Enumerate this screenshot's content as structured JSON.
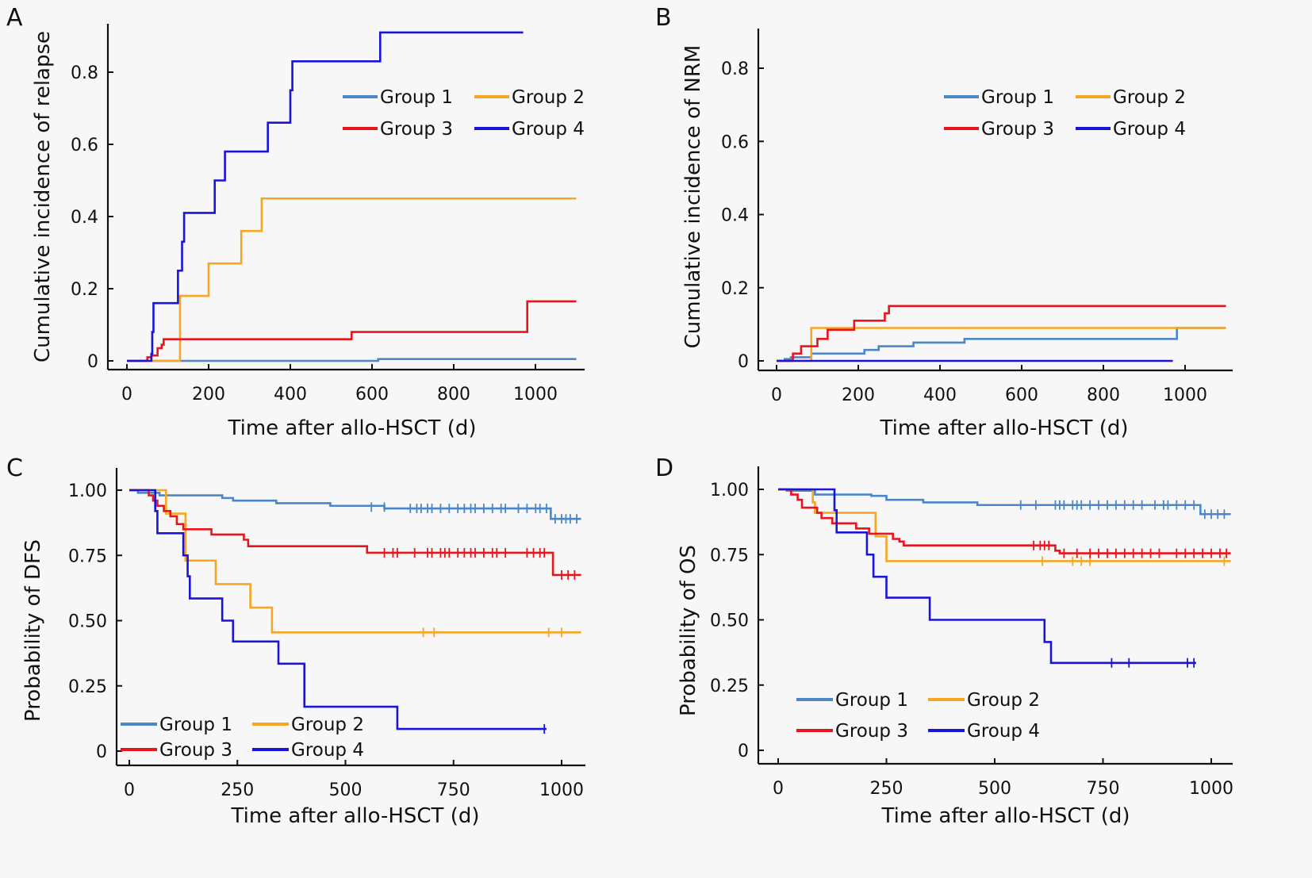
{
  "figure": {
    "colors": {
      "Group 1": "#4a86c8",
      "Group 2": "#f5a623",
      "Group 3": "#e8141e",
      "Group 4": "#1a14d6"
    }
  },
  "chart_data": [
    {
      "panel": "A",
      "type": "line",
      "step": true,
      "title": "",
      "xlabel": "Time after allo-HSCT (d)",
      "ylabel": "Cumulative incidence of relapse",
      "xlim": [
        -45,
        1120
      ],
      "ylim": [
        -0.025,
        0.92
      ],
      "xticks": [
        0,
        200,
        400,
        600,
        800,
        1000
      ],
      "xtick_labels": [
        "0",
        "200",
        "400",
        "600",
        "800",
        "1000"
      ],
      "yticks": [
        0,
        0.2,
        0.4,
        0.6,
        0.8
      ],
      "ytick_labels": [
        "0",
        "0.2",
        "0.4",
        "0.6",
        "0.8"
      ],
      "grid": false,
      "legend": {
        "placement": "top-right",
        "columns": 2,
        "entries": [
          "Group 1",
          "Group 2",
          "Group 3",
          "Group 4"
        ]
      },
      "series": [
        {
          "name": "Group 1",
          "x": [
            0,
            610,
            615,
            1100
          ],
          "y": [
            0,
            0,
            0.005,
            0.005
          ]
        },
        {
          "name": "Group 2",
          "x": [
            0,
            130,
            200,
            280,
            330,
            1100
          ],
          "y": [
            0,
            0.18,
            0.27,
            0.36,
            0.45,
            0.45
          ]
        },
        {
          "name": "Group 3",
          "x": [
            0,
            50,
            60,
            75,
            85,
            90,
            550,
            980,
            1100
          ],
          "y": [
            0,
            0.01,
            0.015,
            0.035,
            0.045,
            0.06,
            0.08,
            0.165,
            0.165
          ]
        },
        {
          "name": "Group 4",
          "x": [
            0,
            60,
            62,
            65,
            125,
            135,
            140,
            215,
            240,
            345,
            400,
            405,
            620,
            970
          ],
          "y": [
            0,
            0.02,
            0.08,
            0.16,
            0.25,
            0.33,
            0.41,
            0.5,
            0.58,
            0.66,
            0.75,
            0.83,
            0.91,
            0.91
          ]
        }
      ],
      "censor_marks": []
    },
    {
      "panel": "B",
      "type": "line",
      "step": true,
      "title": "",
      "xlabel": "Time after allo-HSCT (d)",
      "ylabel": "Cumulative incidence of NRM",
      "xlim": [
        -45,
        1120
      ],
      "ylim": [
        -0.025,
        0.92
      ],
      "xticks": [
        0,
        200,
        400,
        600,
        800,
        1000
      ],
      "xtick_labels": [
        "0",
        "200",
        "400",
        "600",
        "800",
        "1000"
      ],
      "yticks": [
        0,
        0.2,
        0.4,
        0.6,
        0.8
      ],
      "ytick_labels": [
        "0",
        "0.2",
        "0.4",
        "0.6",
        "0.8"
      ],
      "grid": false,
      "legend": {
        "placement": "top-right",
        "columns": 2,
        "entries": [
          "Group 1",
          "Group 2",
          "Group 3",
          "Group 4"
        ]
      },
      "series": [
        {
          "name": "Group 1",
          "x": [
            0,
            20,
            35,
            85,
            215,
            250,
            335,
            460,
            980,
            1100
          ],
          "y": [
            0,
            0.005,
            0.01,
            0.02,
            0.03,
            0.04,
            0.05,
            0.06,
            0.09,
            0.09
          ]
        },
        {
          "name": "Group 2",
          "x": [
            0,
            85,
            1100
          ],
          "y": [
            0,
            0.09,
            0.09
          ]
        },
        {
          "name": "Group 3",
          "x": [
            0,
            40,
            60,
            100,
            125,
            190,
            265,
            275,
            1100
          ],
          "y": [
            0,
            0.02,
            0.04,
            0.06,
            0.085,
            0.11,
            0.13,
            0.15,
            0.15
          ]
        },
        {
          "name": "Group 4",
          "x": [
            0,
            970
          ],
          "y": [
            0,
            0
          ]
        }
      ],
      "censor_marks": []
    },
    {
      "panel": "C",
      "type": "line",
      "step": true,
      "title": "",
      "xlabel": "Time after allo-HSCT (d)",
      "ylabel": "Probability of DFS",
      "xlim": [
        -55,
        1055
      ],
      "ylim": [
        -0.05,
        1.05
      ],
      "xticks": [
        0,
        250,
        500,
        750,
        1000
      ],
      "xtick_labels": [
        "0",
        "250",
        "500",
        "750",
        "1000"
      ],
      "yticks": [
        0,
        0.25,
        0.5,
        0.75,
        1.0
      ],
      "ytick_labels": [
        "0",
        "0.25",
        "0.50",
        "0.75",
        "1.00"
      ],
      "grid": false,
      "legend": {
        "placement": "bottom-left",
        "columns": 2,
        "entries": [
          "Group 1",
          "Group 2",
          "Group 3",
          "Group 4"
        ]
      },
      "series": [
        {
          "name": "Group 1",
          "x": [
            0,
            20,
            70,
            215,
            240,
            340,
            465,
            590,
            975,
            1045
          ],
          "y": [
            1.0,
            0.99,
            0.98,
            0.97,
            0.96,
            0.95,
            0.94,
            0.93,
            0.89,
            0.89
          ]
        },
        {
          "name": "Group 2",
          "x": [
            0,
            85,
            130,
            200,
            280,
            330,
            1045
          ],
          "y": [
            1.0,
            0.91,
            0.73,
            0.64,
            0.55,
            0.455,
            0.455
          ]
        },
        {
          "name": "Group 3",
          "x": [
            0,
            45,
            55,
            65,
            80,
            95,
            110,
            125,
            190,
            265,
            275,
            550,
            980,
            1045
          ],
          "y": [
            1.0,
            0.98,
            0.96,
            0.94,
            0.92,
            0.9,
            0.87,
            0.85,
            0.83,
            0.81,
            0.785,
            0.76,
            0.675,
            0.675
          ]
        },
        {
          "name": "Group 4",
          "x": [
            0,
            60,
            65,
            125,
            135,
            140,
            215,
            240,
            345,
            405,
            620,
            965
          ],
          "y": [
            1.0,
            0.92,
            0.835,
            0.75,
            0.67,
            0.585,
            0.5,
            0.42,
            0.335,
            0.17,
            0.085,
            0.085
          ]
        }
      ],
      "censor_marks": [
        {
          "name": "Group 1",
          "x": [
            560,
            590,
            650,
            665,
            675,
            690,
            700,
            720,
            740,
            760,
            775,
            790,
            800,
            820,
            840,
            860,
            870,
            900,
            920,
            940,
            950,
            965,
            985,
            1000,
            1010,
            1020,
            1035
          ],
          "y": [
            0.935,
            0.935,
            0.93,
            0.93,
            0.93,
            0.93,
            0.93,
            0.93,
            0.93,
            0.93,
            0.93,
            0.93,
            0.93,
            0.93,
            0.93,
            0.93,
            0.93,
            0.93,
            0.93,
            0.93,
            0.93,
            0.93,
            0.89,
            0.89,
            0.89,
            0.89,
            0.89
          ]
        },
        {
          "name": "Group 2",
          "x": [
            680,
            705,
            970,
            1000
          ],
          "y": [
            0.455,
            0.455,
            0.455,
            0.455
          ]
        },
        {
          "name": "Group 3",
          "x": [
            590,
            610,
            620,
            660,
            690,
            700,
            720,
            730,
            740,
            760,
            775,
            790,
            800,
            820,
            840,
            850,
            870,
            920,
            935,
            950,
            960,
            1000,
            1015,
            1030
          ],
          "y": [
            0.76,
            0.76,
            0.76,
            0.76,
            0.76,
            0.76,
            0.76,
            0.76,
            0.76,
            0.76,
            0.76,
            0.76,
            0.76,
            0.76,
            0.76,
            0.76,
            0.76,
            0.76,
            0.76,
            0.76,
            0.76,
            0.675,
            0.675,
            0.675
          ]
        },
        {
          "name": "Group 4",
          "x": [
            960
          ],
          "y": [
            0.085
          ]
        }
      ]
    },
    {
      "panel": "D",
      "type": "line",
      "step": true,
      "title": "",
      "xlabel": "Time after allo-HSCT (d)",
      "ylabel": "Probability of OS",
      "xlim": [
        -45,
        1055
      ],
      "ylim": [
        -0.05,
        1.05
      ],
      "xticks": [
        0,
        250,
        500,
        750,
        1000
      ],
      "xtick_labels": [
        "0",
        "250",
        "500",
        "750",
        "1000"
      ],
      "yticks": [
        0,
        0.25,
        0.5,
        0.75,
        1.0
      ],
      "ytick_labels": [
        "0",
        "0.25",
        "0.50",
        "0.75",
        "1.00"
      ],
      "grid": false,
      "legend": {
        "placement": "bottom-left",
        "columns": 2,
        "entries": [
          "Group 1",
          "Group 2",
          "Group 3",
          "Group 4"
        ]
      },
      "series": [
        {
          "name": "Group 1",
          "x": [
            0,
            20,
            85,
            215,
            250,
            335,
            460,
            975,
            1045
          ],
          "y": [
            1.0,
            0.995,
            0.98,
            0.975,
            0.96,
            0.95,
            0.94,
            0.905,
            0.905
          ]
        },
        {
          "name": "Group 2",
          "x": [
            0,
            80,
            85,
            225,
            250,
            1045
          ],
          "y": [
            1.0,
            0.95,
            0.91,
            0.82,
            0.725,
            0.725
          ]
        },
        {
          "name": "Group 3",
          "x": [
            0,
            30,
            45,
            55,
            90,
            100,
            125,
            180,
            210,
            265,
            280,
            290,
            640,
            650,
            1045
          ],
          "y": [
            1.0,
            0.98,
            0.96,
            0.93,
            0.91,
            0.89,
            0.87,
            0.85,
            0.83,
            0.81,
            0.8,
            0.785,
            0.765,
            0.755,
            0.755
          ]
        },
        {
          "name": "Group 4",
          "x": [
            0,
            130,
            135,
            205,
            220,
            250,
            350,
            615,
            630,
            965
          ],
          "y": [
            1.0,
            0.92,
            0.835,
            0.75,
            0.665,
            0.585,
            0.5,
            0.415,
            0.335,
            0.335
          ]
        }
      ],
      "censor_marks": [
        {
          "name": "Group 1",
          "x": [
            560,
            595,
            640,
            650,
            660,
            680,
            690,
            700,
            720,
            740,
            760,
            780,
            800,
            820,
            840,
            870,
            890,
            900,
            920,
            940,
            960,
            985,
            1000,
            1015,
            1030
          ],
          "y": [
            0.94,
            0.94,
            0.94,
            0.94,
            0.94,
            0.94,
            0.94,
            0.94,
            0.94,
            0.94,
            0.94,
            0.94,
            0.94,
            0.94,
            0.94,
            0.94,
            0.94,
            0.94,
            0.94,
            0.94,
            0.94,
            0.905,
            0.905,
            0.905,
            0.905
          ]
        },
        {
          "name": "Group 2",
          "x": [
            610,
            680,
            700,
            720,
            1030
          ],
          "y": [
            0.725,
            0.725,
            0.725,
            0.725,
            0.725
          ]
        },
        {
          "name": "Group 3",
          "x": [
            590,
            605,
            615,
            625,
            660,
            690,
            720,
            740,
            760,
            780,
            800,
            820,
            840,
            860,
            880,
            920,
            940,
            960,
            980,
            1000,
            1020,
            1035
          ],
          "y": [
            0.785,
            0.785,
            0.785,
            0.785,
            0.755,
            0.755,
            0.755,
            0.755,
            0.755,
            0.755,
            0.755,
            0.755,
            0.755,
            0.755,
            0.755,
            0.755,
            0.755,
            0.755,
            0.755,
            0.755,
            0.755,
            0.755
          ]
        },
        {
          "name": "Group 4",
          "x": [
            770,
            810,
            945,
            960
          ],
          "y": [
            0.335,
            0.335,
            0.335,
            0.335
          ]
        }
      ]
    }
  ],
  "panels": [
    {
      "letter": "A"
    },
    {
      "letter": "B"
    },
    {
      "letter": "C"
    },
    {
      "letter": "D"
    }
  ]
}
